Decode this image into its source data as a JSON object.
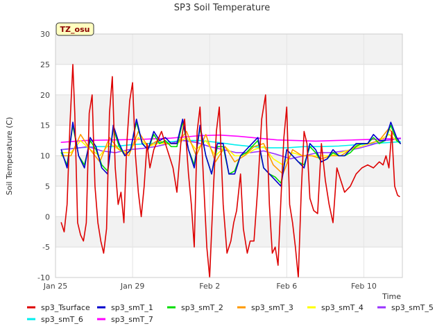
{
  "chart_data": {
    "type": "line",
    "title": "SP3 Soil Temperature",
    "xlabel": "Time",
    "ylabel": "Soil Temperature (C)",
    "annotation": "TZ_osu",
    "xlim": [
      0,
      18
    ],
    "ylim": [
      -10,
      30
    ],
    "yticks": [
      -10,
      -5,
      0,
      5,
      10,
      15,
      20,
      25,
      30
    ],
    "xticks": [
      {
        "value": 0,
        "label": "Jan 25"
      },
      {
        "value": 4,
        "label": "Jan 29"
      },
      {
        "value": 8,
        "label": "Feb 2"
      },
      {
        "value": 12,
        "label": "Feb 6"
      },
      {
        "value": 16,
        "label": "Feb 10"
      }
    ],
    "grid": true,
    "legend_position": "bottom",
    "series": [
      {
        "name": "sp3_Tsurface",
        "color": "#dd0000",
        "x": [
          0.3,
          0.45,
          0.6,
          0.75,
          0.9,
          1.0,
          1.15,
          1.3,
          1.45,
          1.6,
          1.75,
          1.9,
          2.05,
          2.2,
          2.35,
          2.5,
          2.65,
          2.8,
          2.95,
          3.1,
          3.25,
          3.4,
          3.55,
          3.7,
          3.85,
          4.0,
          4.15,
          4.3,
          4.45,
          4.6,
          4.75,
          4.9,
          5.1,
          5.3,
          5.5,
          5.7,
          5.9,
          6.1,
          6.3,
          6.5,
          6.7,
          6.9,
          7.05,
          7.2,
          7.35,
          7.5,
          7.65,
          7.85,
          8.0,
          8.2,
          8.35,
          8.5,
          8.7,
          8.9,
          9.1,
          9.25,
          9.4,
          9.6,
          9.75,
          9.95,
          10.1,
          10.3,
          10.5,
          10.7,
          10.9,
          11.1,
          11.25,
          11.4,
          11.55,
          11.7,
          11.85,
          12.0,
          12.15,
          12.3,
          12.45,
          12.6,
          12.75,
          12.9,
          13.05,
          13.2,
          13.4,
          13.6,
          13.8,
          14.0,
          14.2,
          14.4,
          14.6,
          14.8,
          15.0,
          15.3,
          15.6,
          15.9,
          16.2,
          16.5,
          16.8,
          17.0,
          17.15,
          17.3,
          17.45,
          17.6,
          17.75,
          17.85
        ],
        "y": [
          -1,
          -2.5,
          2,
          15,
          25,
          17,
          -1,
          -3,
          -4,
          -1,
          17,
          20,
          5,
          -1,
          -4,
          -6,
          -2,
          17,
          23,
          8,
          2,
          4,
          -1,
          12,
          19,
          22,
          10,
          4,
          0,
          5,
          12,
          8,
          11,
          12.5,
          14,
          12,
          10,
          8,
          4,
          12,
          16,
          7,
          2,
          -5,
          14,
          18,
          8,
          -5,
          -10,
          5,
          14,
          18,
          2,
          -6,
          -4,
          -1,
          1,
          7,
          -2,
          -6,
          -4,
          -4,
          5,
          16,
          20,
          2,
          -6,
          -5,
          -8,
          3,
          13,
          18,
          2,
          -1,
          -5,
          -10,
          4,
          14,
          12,
          3,
          1,
          0.5,
          12,
          6,
          2,
          -1,
          8,
          6,
          4,
          5,
          7,
          8,
          8.5,
          8,
          9,
          8.5,
          10,
          8,
          14,
          5,
          3.5,
          3.3
        ]
      },
      {
        "name": "sp3_smT_1",
        "color": "#0000cc",
        "x": [
          0.3,
          0.6,
          0.9,
          1.2,
          1.5,
          1.8,
          2.1,
          2.4,
          2.7,
          3.0,
          3.3,
          3.6,
          3.9,
          4.2,
          4.5,
          4.8,
          5.1,
          5.4,
          5.7,
          6.0,
          6.3,
          6.6,
          6.9,
          7.2,
          7.5,
          7.8,
          8.1,
          8.4,
          8.7,
          9.0,
          9.3,
          9.6,
          9.9,
          10.2,
          10.5,
          10.8,
          11.1,
          11.4,
          11.7,
          12.0,
          12.3,
          12.6,
          12.9,
          13.2,
          13.5,
          13.8,
          14.1,
          14.4,
          14.7,
          15.0,
          15.3,
          15.6,
          15.9,
          16.2,
          16.5,
          16.8,
          17.1,
          17.4,
          17.7,
          17.9
        ],
        "y": [
          11,
          8,
          15.5,
          10,
          8,
          13,
          11.5,
          8,
          7,
          15,
          12,
          10,
          11,
          16,
          12,
          11,
          14,
          12.5,
          13,
          12,
          12,
          16,
          11,
          8,
          15,
          10,
          7,
          12,
          12,
          7,
          7,
          10,
          11,
          12,
          13,
          8,
          7,
          6,
          5,
          11,
          10,
          9,
          8,
          12,
          11,
          9,
          9.5,
          11,
          10,
          10,
          11,
          12,
          12,
          12,
          13.5,
          12.5,
          12.5,
          15.5,
          13,
          12
        ]
      },
      {
        "name": "sp3_smT_2",
        "color": "#00dd00",
        "x": [
          0.3,
          0.6,
          0.9,
          1.2,
          1.5,
          1.8,
          2.1,
          2.4,
          2.7,
          3.0,
          3.3,
          3.6,
          3.9,
          4.2,
          4.5,
          4.8,
          5.1,
          5.4,
          5.7,
          6.0,
          6.3,
          6.6,
          6.9,
          7.2,
          7.5,
          7.8,
          8.1,
          8.4,
          8.7,
          9.0,
          9.3,
          9.6,
          9.9,
          10.2,
          10.5,
          10.8,
          11.1,
          11.4,
          11.7,
          12.0,
          12.3,
          12.6,
          12.9,
          13.2,
          13.5,
          13.8,
          14.1,
          14.4,
          14.7,
          15.0,
          15.3,
          15.6,
          15.9,
          16.2,
          16.5,
          16.8,
          17.1,
          17.4,
          17.7,
          17.9
        ],
        "y": [
          10.5,
          8.5,
          15,
          10,
          8.5,
          12.5,
          11,
          8.5,
          7.5,
          14.5,
          11.5,
          10,
          11,
          15.5,
          12,
          11,
          13.5,
          12,
          12.5,
          11.5,
          11.5,
          15.5,
          11,
          8.5,
          14.5,
          10,
          7,
          11.5,
          11.5,
          7,
          7.5,
          10,
          10.5,
          11.5,
          12.5,
          8,
          7,
          6.5,
          5.5,
          11,
          10,
          9,
          8.5,
          11.5,
          10.5,
          9,
          9.5,
          10.5,
          10,
          10,
          10.5,
          11.5,
          12,
          12,
          13,
          12,
          12.5,
          15,
          12.5,
          12
        ]
      },
      {
        "name": "sp3_smT_3",
        "color": "#ff9900",
        "x": [
          0.3,
          0.8,
          1.3,
          1.8,
          2.3,
          2.8,
          3.3,
          3.8,
          4.3,
          4.8,
          5.3,
          5.8,
          6.3,
          6.8,
          7.3,
          7.8,
          8.3,
          8.8,
          9.3,
          9.8,
          10.3,
          10.8,
          11.3,
          11.8,
          12.3,
          12.8,
          13.3,
          13.8,
          14.3,
          14.8,
          15.3,
          15.8,
          16.3,
          16.8,
          17.3,
          17.9
        ],
        "y": [
          10,
          10,
          13.5,
          11,
          9,
          13,
          11,
          10,
          14,
          11.5,
          12.5,
          12,
          12,
          14,
          10,
          13.5,
          9,
          11.5,
          9,
          10,
          11.5,
          12,
          8.5,
          7,
          11,
          10,
          10,
          9.5,
          10,
          10,
          11,
          12,
          12,
          12.5,
          14.5,
          12
        ]
      },
      {
        "name": "sp3_smT_4",
        "color": "#ffff00",
        "x": [
          0.3,
          0.8,
          1.3,
          1.8,
          2.3,
          2.8,
          3.3,
          3.8,
          4.3,
          4.8,
          5.3,
          5.8,
          6.3,
          6.8,
          7.3,
          7.8,
          8.3,
          8.8,
          9.3,
          9.8,
          10.3,
          10.8,
          11.3,
          11.8,
          12.3,
          12.8,
          13.3,
          13.8,
          14.3,
          14.8,
          15.3,
          15.8,
          16.3,
          16.8,
          17.3,
          17.9
        ],
        "y": [
          10.5,
          10.5,
          12.5,
          11,
          10,
          12,
          11,
          10.5,
          13,
          11.5,
          12,
          12,
          12,
          13,
          11,
          12.5,
          10,
          11.5,
          10,
          10,
          11,
          11.5,
          9.5,
          8.5,
          10.5,
          10,
          10,
          10,
          10,
          10.5,
          11,
          11.5,
          12,
          12.5,
          13.5,
          12
        ]
      },
      {
        "name": "sp3_smT_5",
        "color": "#9933ff",
        "x": [
          0.3,
          1.0,
          1.7,
          2.4,
          3.1,
          3.8,
          4.5,
          5.2,
          5.9,
          6.6,
          7.3,
          8.0,
          8.7,
          9.4,
          10.1,
          10.8,
          11.5,
          12.2,
          12.9,
          13.6,
          14.3,
          15.0,
          15.7,
          16.4,
          17.1,
          17.9
        ],
        "y": [
          11,
          11.2,
          11.5,
          10.8,
          10.5,
          11,
          11.2,
          11.5,
          12,
          12.5,
          12.2,
          11.5,
          11,
          10.5,
          10.5,
          10.8,
          10.2,
          9.5,
          10,
          10.5,
          10.5,
          10.8,
          11.2,
          11.8,
          12.5,
          12.8
        ]
      },
      {
        "name": "sp3_smT_6",
        "color": "#00eeee",
        "x": [
          0.3,
          1.2,
          2.1,
          3.0,
          3.9,
          4.8,
          5.7,
          6.6,
          7.5,
          8.4,
          9.3,
          10.2,
          11.1,
          12.0,
          12.9,
          13.8,
          14.7,
          15.6,
          16.5,
          17.4,
          17.9
        ],
        "y": [
          11,
          11.3,
          11.5,
          11.5,
          11.8,
          12,
          12.2,
          12.5,
          12.5,
          12.2,
          11.8,
          11.5,
          11.3,
          11.3,
          11.5,
          11.5,
          11.6,
          11.8,
          12,
          12.2,
          12.3
        ]
      },
      {
        "name": "sp3_smT_7",
        "color": "#ff00ff",
        "x": [
          0.3,
          1.5,
          3.0,
          4.5,
          6.0,
          7.5,
          8.5,
          9.5,
          10.5,
          11.5,
          12.5,
          13.5,
          14.5,
          15.5,
          16.5,
          17.5,
          17.9
        ],
        "y": [
          12.2,
          12.5,
          12.6,
          12.7,
          12.9,
          13.3,
          13.4,
          13.2,
          12.9,
          12.6,
          12.5,
          12.4,
          12.5,
          12.6,
          12.7,
          12.8,
          12.9
        ]
      }
    ]
  }
}
